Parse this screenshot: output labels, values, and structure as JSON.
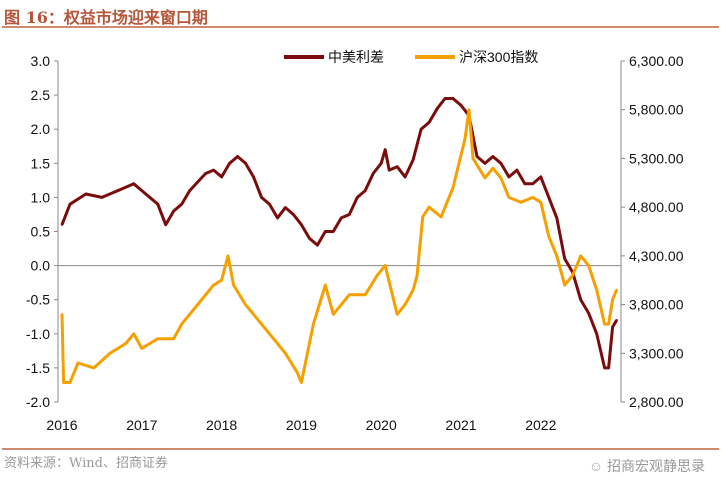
{
  "title": "图 16：权益市场迎来窗口期",
  "footer": {
    "source": "资料来源：Wind、招商证券",
    "brand": "招商宏观静思录",
    "brand_icon": "wechat-icon"
  },
  "chart_data": {
    "type": "line",
    "title": "",
    "x_ticks": [
      "2016",
      "2017",
      "2018",
      "2019",
      "2020",
      "2021",
      "2022"
    ],
    "xlim": [
      2016,
      2022.95
    ],
    "y_left": {
      "lim": [
        -2.0,
        3.0
      ],
      "ticks": [
        "3.0",
        "2.5",
        "2.0",
        "1.5",
        "1.0",
        "0.5",
        "0.0",
        "-0.5",
        "-1.0",
        "-1.5",
        "-2.0"
      ]
    },
    "y_right": {
      "lim": [
        2800,
        6300
      ],
      "ticks": [
        "6,300.00",
        "5,800.00",
        "5,300.00",
        "4,800.00",
        "4,300.00",
        "3,800.00",
        "3,300.00",
        "2,800.00"
      ]
    },
    "legend_placement": "top-right",
    "series": [
      {
        "name": "中美利差",
        "axis": "left",
        "color": "#7b0c0c",
        "x": [
          2016.0,
          2016.1,
          2016.3,
          2016.5,
          2016.7,
          2016.9,
          2017.0,
          2017.2,
          2017.3,
          2017.4,
          2017.5,
          2017.6,
          2017.8,
          2017.9,
          2018.0,
          2018.1,
          2018.2,
          2018.3,
          2018.4,
          2018.5,
          2018.6,
          2018.7,
          2018.8,
          2018.9,
          2019.0,
          2019.1,
          2019.2,
          2019.3,
          2019.4,
          2019.5,
          2019.6,
          2019.7,
          2019.8,
          2019.9,
          2020.0,
          2020.05,
          2020.1,
          2020.2,
          2020.3,
          2020.4,
          2020.5,
          2020.6,
          2020.7,
          2020.8,
          2020.9,
          2021.0,
          2021.1,
          2021.2,
          2021.3,
          2021.4,
          2021.5,
          2021.6,
          2021.7,
          2021.8,
          2021.9,
          2022.0,
          2022.1,
          2022.2,
          2022.3,
          2022.4,
          2022.5,
          2022.6,
          2022.7,
          2022.8,
          2022.85,
          2022.9,
          2022.95
        ],
        "values": [
          0.6,
          0.9,
          1.05,
          1.0,
          1.1,
          1.2,
          1.1,
          0.9,
          0.6,
          0.8,
          0.9,
          1.1,
          1.35,
          1.4,
          1.3,
          1.5,
          1.6,
          1.5,
          1.3,
          1.0,
          0.9,
          0.7,
          0.85,
          0.75,
          0.6,
          0.4,
          0.3,
          0.5,
          0.5,
          0.7,
          0.75,
          1.0,
          1.1,
          1.35,
          1.5,
          1.7,
          1.4,
          1.45,
          1.3,
          1.55,
          2.0,
          2.1,
          2.3,
          2.45,
          2.45,
          2.35,
          2.2,
          1.6,
          1.5,
          1.6,
          1.5,
          1.3,
          1.4,
          1.2,
          1.2,
          1.3,
          1.0,
          0.7,
          0.1,
          -0.1,
          -0.5,
          -0.7,
          -1.0,
          -1.5,
          -1.5,
          -0.9,
          -0.8
        ]
      },
      {
        "name": "沪深300指数",
        "axis": "right",
        "color": "#f5a000",
        "x": [
          2016.0,
          2016.02,
          2016.1,
          2016.2,
          2016.4,
          2016.6,
          2016.8,
          2016.9,
          2017.0,
          2017.2,
          2017.4,
          2017.5,
          2017.7,
          2017.9,
          2018.0,
          2018.08,
          2018.15,
          2018.3,
          2018.5,
          2018.6,
          2018.8,
          2018.95,
          2019.0,
          2019.15,
          2019.3,
          2019.4,
          2019.5,
          2019.6,
          2019.8,
          2019.95,
          2020.05,
          2020.2,
          2020.3,
          2020.4,
          2020.45,
          2020.52,
          2020.6,
          2020.75,
          2020.9,
          2021.05,
          2021.1,
          2021.15,
          2021.3,
          2021.4,
          2021.5,
          2021.6,
          2021.75,
          2021.9,
          2022.0,
          2022.1,
          2022.2,
          2022.3,
          2022.4,
          2022.5,
          2022.6,
          2022.7,
          2022.8,
          2022.85,
          2022.9,
          2022.95
        ],
        "values": [
          3700,
          3000,
          3000,
          3200,
          3150,
          3300,
          3400,
          3500,
          3350,
          3450,
          3450,
          3600,
          3800,
          4000,
          4050,
          4300,
          4000,
          3800,
          3600,
          3500,
          3300,
          3100,
          3000,
          3600,
          4000,
          3700,
          3800,
          3900,
          3900,
          4100,
          4200,
          3700,
          3800,
          3950,
          4100,
          4700,
          4800,
          4700,
          5000,
          5500,
          5800,
          5300,
          5100,
          5200,
          5100,
          4900,
          4850,
          4900,
          4850,
          4500,
          4300,
          4000,
          4100,
          4300,
          4200,
          3950,
          3600,
          3600,
          3850,
          3950
        ]
      }
    ]
  }
}
